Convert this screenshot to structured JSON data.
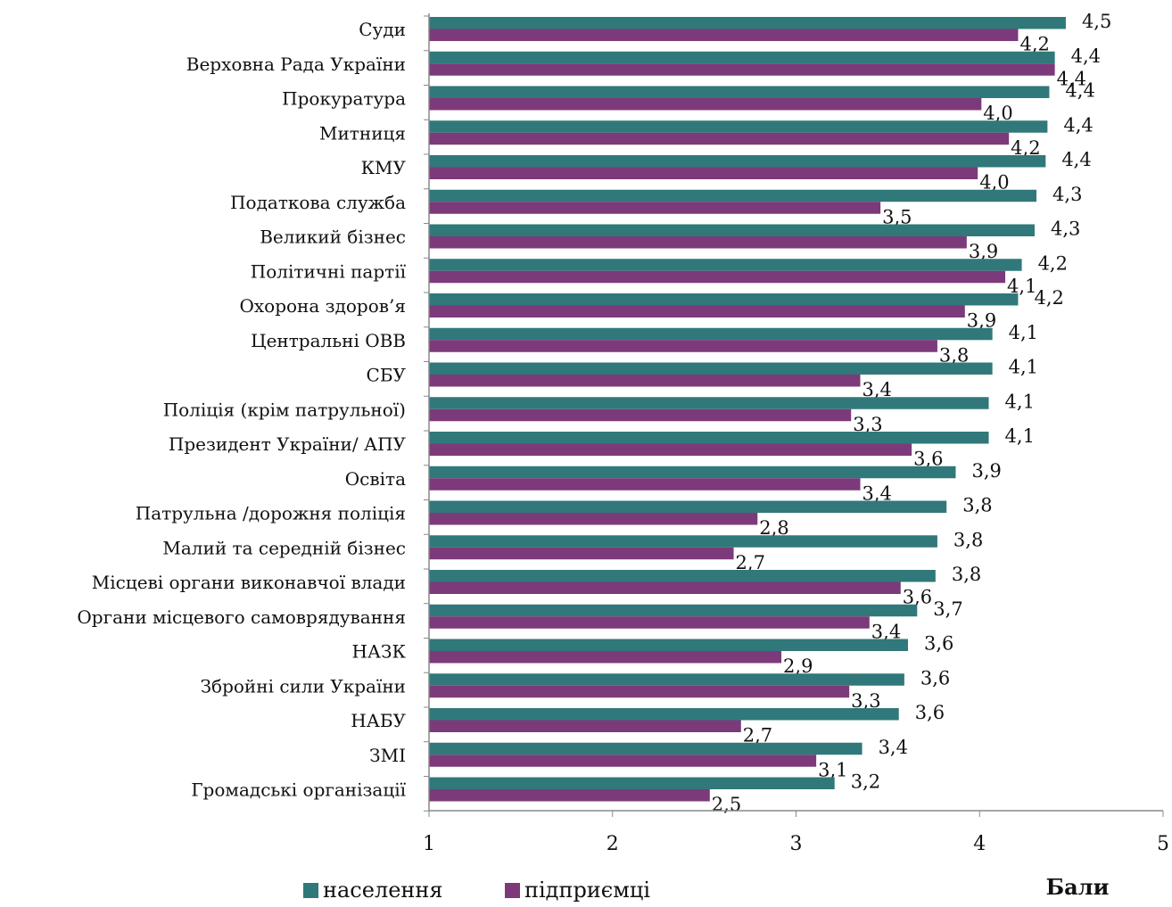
{
  "chart_data": {
    "type": "bar",
    "orientation": "horizontal",
    "categories": [
      "Суди",
      "Верховна Рада України",
      "Прокуратура",
      "Митниця",
      "КМУ",
      "Податкова служба",
      "Великий бізнес",
      "Політичні партії",
      "Охорона здоров’я",
      "Центральні ОВВ",
      "СБУ",
      "Поліція (крім патрульної)",
      "Президент України/ АПУ",
      "Освіта",
      "Патрульна /дорожня поліція",
      "Малий та середній бізнес",
      "Місцеві органи виконавчої влади",
      "Органи місцевого самоврядування",
      "НАЗК",
      "Збройні сили України",
      "НАБУ",
      "ЗМІ",
      "Громадські організації"
    ],
    "series": [
      {
        "name": "населення",
        "color": "#31787a",
        "values": [
          4.47,
          4.41,
          4.38,
          4.37,
          4.36,
          4.31,
          4.3,
          4.23,
          4.21,
          4.07,
          4.07,
          4.05,
          4.05,
          3.87,
          3.82,
          3.77,
          3.76,
          3.66,
          3.61,
          3.59,
          3.56,
          3.36,
          3.21
        ],
        "labels": [
          "4,5",
          "4,4",
          "4,4",
          "4,4",
          "4,4",
          "4,3",
          "4,3",
          "4,2",
          "4,2",
          "4,1",
          "4,1",
          "4,1",
          "4,1",
          "3,9",
          "3,8",
          "3,8",
          "3,8",
          "3,7",
          "3,6",
          "3,6",
          "3,6",
          "3,4",
          "3,2"
        ]
      },
      {
        "name": "підприємці",
        "color": "#7c3a7a",
        "values": [
          4.21,
          4.41,
          4.01,
          4.16,
          3.99,
          3.46,
          3.93,
          4.14,
          3.92,
          3.77,
          3.35,
          3.3,
          3.63,
          3.35,
          2.79,
          2.66,
          3.57,
          3.4,
          2.92,
          3.29,
          2.7,
          3.11,
          2.53
        ],
        "labels": [
          "4,2",
          "4,4",
          "4,0",
          "4,2",
          "4,0",
          "3,5",
          "3,9",
          "4,1",
          "3,9",
          "3,8",
          "3,4",
          "3,3",
          "3,6",
          "3,4",
          "2,8",
          "2,7",
          "3,6",
          "3,4",
          "2,9",
          "3,3",
          "2,7",
          "3,1",
          "2,5"
        ]
      }
    ],
    "xlim": [
      1,
      5
    ],
    "xticks": [
      "1",
      "2",
      "3",
      "4",
      "5"
    ],
    "xlabel": "Бали",
    "grid": false,
    "legend_position": "bottom-left"
  }
}
